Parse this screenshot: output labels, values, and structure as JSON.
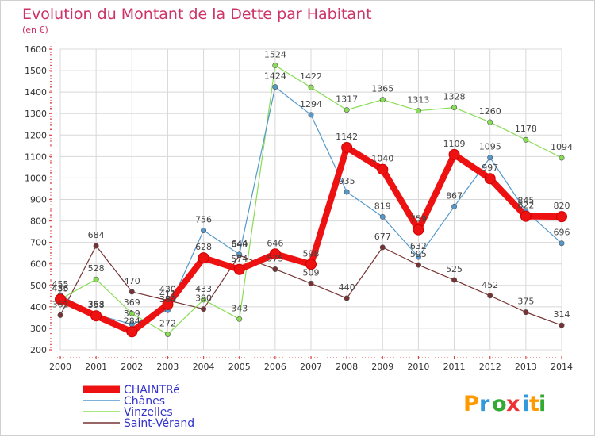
{
  "chart_data": {
    "type": "line",
    "title": "Evolution du Montant de la Dette par Habitant",
    "subtitle": "(en €)",
    "x": [
      2000,
      2001,
      2002,
      2003,
      2004,
      2005,
      2006,
      2007,
      2008,
      2009,
      2010,
      2011,
      2012,
      2013,
      2014
    ],
    "ylim": [
      200,
      1600
    ],
    "yticks": [
      200,
      300,
      400,
      500,
      600,
      700,
      800,
      900,
      1000,
      1100,
      1200,
      1300,
      1400,
      1500,
      1600
    ],
    "grid": true,
    "legend_position": "bottom-left",
    "series": [
      {
        "name": "CHAINTRé",
        "color": "#ee1111",
        "width": 8,
        "values": [
          435,
          358,
          284,
          411,
          628,
          574,
          646,
          598,
          1142,
          1040,
          759,
          1109,
          997,
          822,
          820
        ]
      },
      {
        "name": "Chânes",
        "color": "#5599cc",
        "width": 1.2,
        "values": [
          455,
          363,
          319,
          384,
          756,
          644,
          1424,
          1294,
          935,
          819,
          632,
          867,
          1095,
          845,
          696
        ]
      },
      {
        "name": "Vinzelles",
        "color": "#88dd55",
        "width": 1.2,
        "values": [
          436,
          528,
          369,
          272,
          433,
          343,
          1524,
          1422,
          1317,
          1365,
          1313,
          1328,
          1260,
          1178,
          1094
        ]
      },
      {
        "name": "Saint-Vérand",
        "color": "#773333",
        "width": 1.2,
        "values": [
          361,
          684,
          470,
          430,
          390,
          640,
          575,
          509,
          440,
          677,
          595,
          525,
          452,
          375,
          314
        ]
      }
    ],
    "labels": [
      [
        "455",
        "435",
        "436",
        "361"
      ],
      [
        "684",
        "528",
        "363",
        "358"
      ],
      [
        "470",
        "369",
        "319",
        "284"
      ],
      [
        "430",
        "411",
        "384",
        "272"
      ],
      [
        "756",
        "628",
        "433",
        "390"
      ],
      [
        "644",
        "640",
        "574",
        "343"
      ],
      [
        "1524",
        "1424",
        "646",
        "575"
      ],
      [
        "1422",
        "1294",
        "598",
        "509"
      ],
      [
        "1317",
        "1142",
        "935",
        "440"
      ],
      [
        "1365",
        "1040",
        "819",
        "677"
      ],
      [
        "1313",
        "759",
        "632",
        "595"
      ],
      [
        "1328",
        "1109",
        "867",
        "525"
      ],
      [
        "1260",
        "1095",
        "997",
        "452"
      ],
      [
        "1178",
        "845",
        "822",
        "375"
      ],
      [
        "1094",
        "820",
        "696",
        "314"
      ]
    ]
  },
  "logo": {
    "text": "Proxiti",
    "letters": [
      "P",
      "r",
      "o",
      "x",
      "i",
      "t",
      "i"
    ]
  }
}
